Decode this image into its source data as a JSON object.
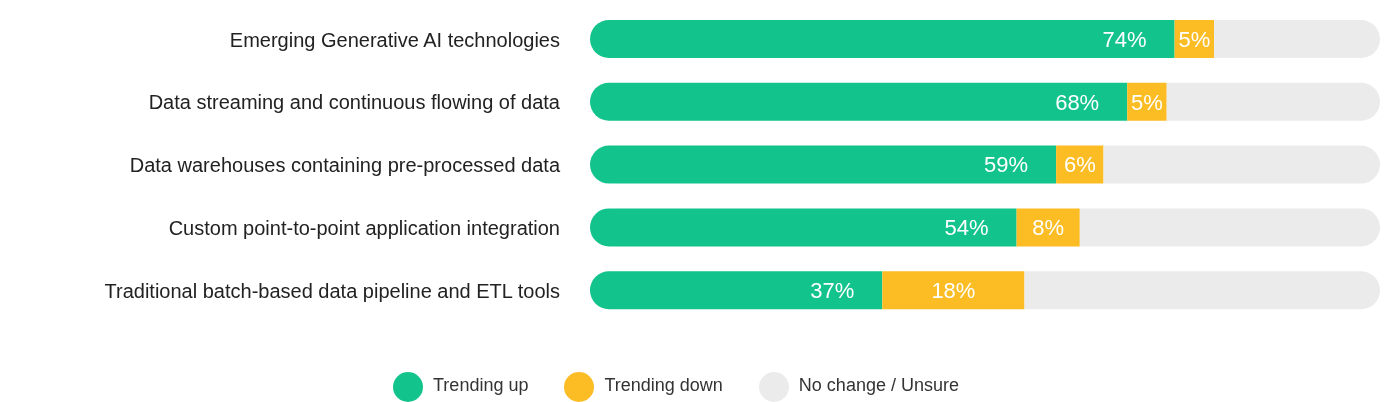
{
  "chart_data": {
    "type": "bar",
    "orientation": "horizontal",
    "stacked": true,
    "categories": [
      "Emerging Generative AI technologies",
      "Data streaming and continuous flowing of data",
      "Data warehouses containing pre-processed data",
      "Custom point-to-point application integration",
      "Traditional batch-based data pipeline and ETL tools"
    ],
    "series": [
      {
        "name": "Trending up",
        "color": "#12c48b",
        "values": [
          74,
          68,
          59,
          54,
          37
        ],
        "value_labels": [
          "74%",
          "68%",
          "59%",
          "54%",
          "37%"
        ]
      },
      {
        "name": "Trending down",
        "color": "#fbbc24",
        "values": [
          5,
          5,
          6,
          8,
          18
        ],
        "value_labels": [
          "5%",
          "5%",
          "6%",
          "8%",
          "18%"
        ]
      },
      {
        "name": "No change / Unsure",
        "color": "#ebebeb",
        "values": [
          21,
          27,
          35,
          38,
          45
        ]
      }
    ],
    "xlim": [
      0,
      100
    ],
    "tick_labels": "y",
    "legend": "bottom",
    "grid": false
  }
}
